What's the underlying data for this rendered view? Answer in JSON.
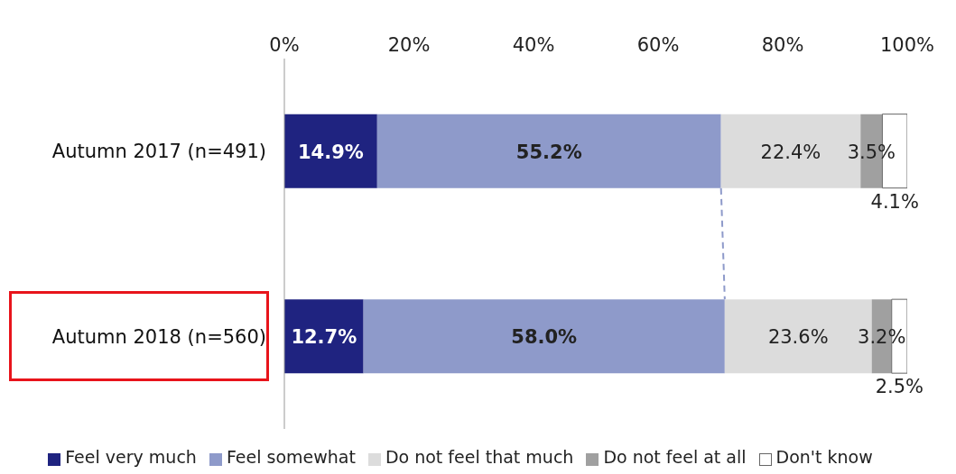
{
  "chart_data": {
    "type": "bar",
    "orientation": "horizontal",
    "stacked": true,
    "categories": [
      "Autumn 2017 (n=491)",
      "Autumn 2018 (n=560)"
    ],
    "series": [
      {
        "name": "Feel very much",
        "color": "#1f2380",
        "values": [
          14.9,
          12.7
        ],
        "value_labels": [
          "14.9%",
          "12.7%"
        ]
      },
      {
        "name": "Feel somewhat",
        "color": "#8e9aca",
        "values": [
          55.2,
          58.0
        ],
        "value_labels": [
          "55.2%",
          "58.0%"
        ]
      },
      {
        "name": "Do not feel that much",
        "color": "#dcdcdc",
        "values": [
          22.4,
          23.6
        ],
        "value_labels": [
          "22.4%",
          "23.6%"
        ]
      },
      {
        "name": "Do not feel at all",
        "color": "#a0a0a0",
        "values": [
          3.5,
          3.2
        ],
        "value_labels": [
          "3.5%",
          "3.2%"
        ]
      },
      {
        "name": "Don't know",
        "color": "#ffffff",
        "values": [
          4.1,
          2.5
        ],
        "value_labels": [
          "4.1%",
          "2.5%"
        ]
      }
    ],
    "xlim": [
      0,
      100
    ],
    "xticks": [
      {
        "value": 0,
        "label": "0%"
      },
      {
        "value": 20,
        "label": "20%"
      },
      {
        "value": 40,
        "label": "40%"
      },
      {
        "value": 60,
        "label": "60%"
      },
      {
        "value": 80,
        "label": "80%"
      },
      {
        "value": 100,
        "label": "100%"
      }
    ],
    "grid": false,
    "legend": "bottom"
  }
}
